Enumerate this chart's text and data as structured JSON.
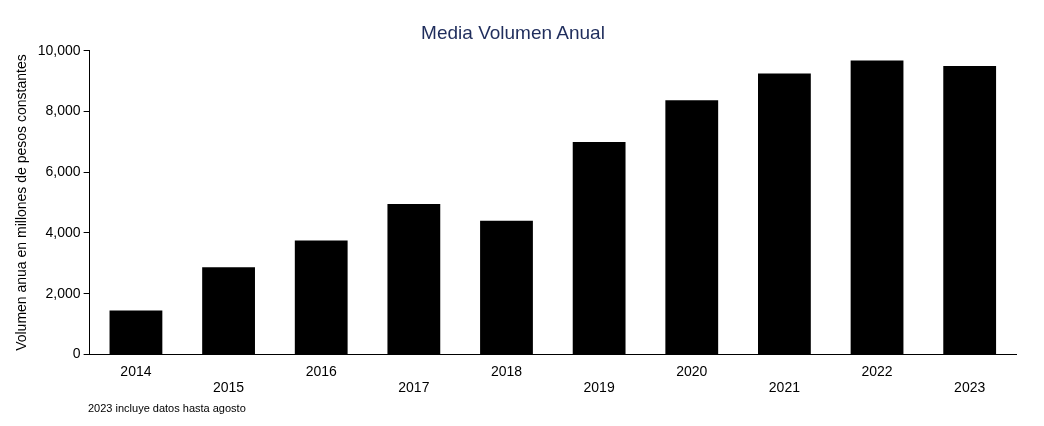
{
  "chart_data": {
    "type": "bar",
    "title": "Media Volumen Anual",
    "ylabel": "Volumen anua en millones de pesos constantes",
    "categories": [
      "2014",
      "2015",
      "2016",
      "2017",
      "2018",
      "2019",
      "2020",
      "2021",
      "2022",
      "2023"
    ],
    "values": [
      1450,
      2870,
      3750,
      4950,
      4400,
      7000,
      8370,
      9250,
      9680,
      9500
    ],
    "color": "#000000",
    "ylim": [
      0,
      10000
    ],
    "yticks": [
      {
        "value": 0,
        "label": "0"
      },
      {
        "value": 2000,
        "label": "2,000"
      },
      {
        "value": 4000,
        "label": "4,000"
      },
      {
        "value": 6000,
        "label": "6,000"
      },
      {
        "value": 8000,
        "label": "8,000"
      },
      {
        "value": 10000,
        "label": "10,000"
      }
    ],
    "grid": false,
    "legend": false,
    "annotations": [
      "2023 incluye datos hasta agosto"
    ]
  }
}
